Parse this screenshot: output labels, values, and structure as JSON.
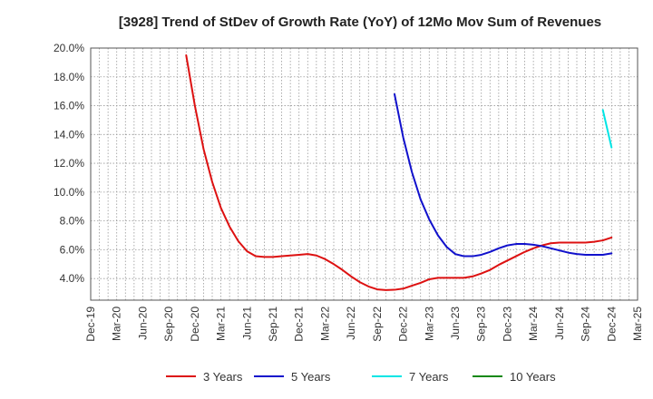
{
  "chart_data": {
    "type": "line",
    "title": "[3928]  Trend of StDev of Growth Rate (YoY) of 12Mo Mov Sum of Revenues",
    "xlabel": "",
    "ylabel": "",
    "ylim": [
      2.5,
      20.0
    ],
    "y_ticks": [
      "4.0%",
      "6.0%",
      "8.0%",
      "10.0%",
      "12.0%",
      "14.0%",
      "16.0%",
      "18.0%",
      "20.0%"
    ],
    "y_tick_values": [
      4,
      6,
      8,
      10,
      12,
      14,
      16,
      18,
      20
    ],
    "x_ticks": [
      "Dec-19",
      "Mar-20",
      "Jun-20",
      "Sep-20",
      "Dec-20",
      "Mar-21",
      "Jun-21",
      "Sep-21",
      "Dec-21",
      "Mar-22",
      "Jun-22",
      "Sep-22",
      "Dec-22",
      "Mar-23",
      "Jun-23",
      "Sep-23",
      "Dec-23",
      "Mar-24",
      "Jun-24",
      "Sep-24",
      "Dec-24",
      "Mar-25"
    ],
    "grid": true,
    "legend_position": "bottom",
    "series": [
      {
        "name": "3 Years",
        "color": "#dd1111",
        "x": [
          11,
          12,
          13,
          14,
          15,
          16,
          17,
          18,
          19,
          20,
          21,
          22,
          23,
          24,
          25,
          26,
          27,
          28,
          29,
          30,
          31,
          32,
          33,
          34,
          35,
          36,
          37,
          38,
          39,
          40,
          41,
          42,
          43,
          44,
          45,
          46,
          47,
          48,
          49,
          50,
          51,
          52,
          53,
          54,
          55,
          56,
          57,
          58,
          59,
          60
        ],
        "values": [
          19.5,
          16.0,
          13.0,
          10.7,
          8.9,
          7.6,
          6.6,
          5.9,
          5.55,
          5.5,
          5.5,
          5.55,
          5.6,
          5.65,
          5.7,
          5.6,
          5.35,
          5.0,
          4.6,
          4.15,
          3.75,
          3.45,
          3.25,
          3.2,
          3.22,
          3.3,
          3.5,
          3.7,
          3.95,
          4.05,
          4.05,
          4.05,
          4.05,
          4.15,
          4.35,
          4.6,
          4.95,
          5.25,
          5.55,
          5.85,
          6.1,
          6.3,
          6.45,
          6.5,
          6.5,
          6.5,
          6.5,
          6.55,
          6.65,
          6.85
        ]
      },
      {
        "name": "5 Years",
        "color": "#1111cc",
        "x": [
          35,
          36,
          37,
          38,
          39,
          40,
          41,
          42,
          43,
          44,
          45,
          46,
          47,
          48,
          49,
          50,
          51,
          52,
          53,
          54,
          55,
          56,
          57,
          58,
          59,
          60
        ],
        "values": [
          16.8,
          13.8,
          11.4,
          9.5,
          8.1,
          7.0,
          6.2,
          5.7,
          5.55,
          5.55,
          5.65,
          5.85,
          6.1,
          6.3,
          6.4,
          6.4,
          6.35,
          6.25,
          6.1,
          5.95,
          5.8,
          5.7,
          5.65,
          5.65,
          5.65,
          5.75
        ]
      },
      {
        "name": "7 Years",
        "color": "#00e5e5",
        "x": [
          59,
          60
        ],
        "values": [
          15.7,
          13.1
        ]
      },
      {
        "name": "10 Years",
        "color": "#118811",
        "x": [],
        "values": []
      }
    ]
  }
}
